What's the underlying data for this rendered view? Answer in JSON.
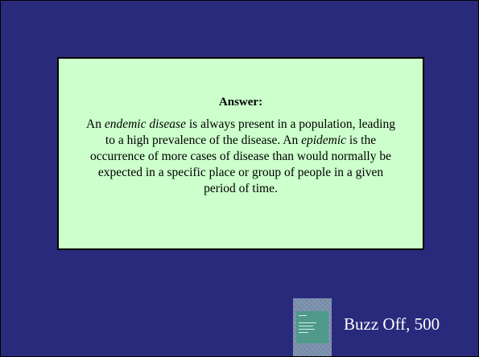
{
  "card": {
    "title": "Answer:",
    "segments": [
      {
        "text": "An ",
        "italic": false
      },
      {
        "text": "endemic disease",
        "italic": true
      },
      {
        "text": " is always present in a population, leading to a high prevalence  of the disease.  An ",
        "italic": false
      },
      {
        "text": "epidemic",
        "italic": true
      },
      {
        "text": " is the occurrence of more cases of disease than would normally be expected in a specific place or group of people in a given period of time.",
        "italic": false
      }
    ]
  },
  "footer": {
    "label": "Buzz Off, 500"
  }
}
